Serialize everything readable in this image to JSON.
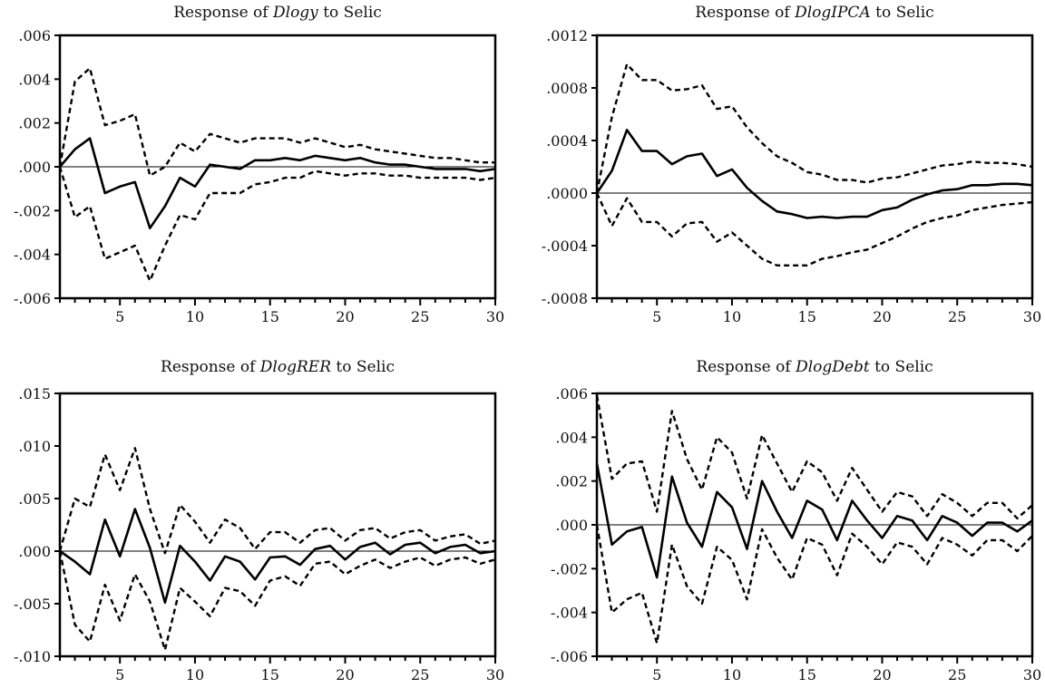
{
  "chart_data": [
    {
      "type": "line",
      "title_prefix": "Response of ",
      "title_variable": "Dlogy",
      "title_suffix": " to Selic",
      "ylim": [
        -0.006,
        0.006
      ],
      "yticks": [
        0.006,
        0.004,
        0.002,
        0.0,
        -0.002,
        -0.004,
        -0.006
      ],
      "ytick_labels": [
        ".006",
        ".004",
        ".002",
        ".000",
        "-.002",
        "-.004",
        "-.006"
      ],
      "xlim": [
        1,
        30
      ],
      "xtick_labels": [
        "5",
        "10",
        "15",
        "20",
        "25",
        "30"
      ],
      "series": [
        {
          "name": "response",
          "style": "solid",
          "values": [
            0,
            0.0008,
            0.0013,
            -0.0012,
            -0.0009,
            -0.0007,
            -0.0028,
            -0.0018,
            -0.0005,
            -0.0009,
            0.0001,
            0.0,
            -0.0001,
            0.0003,
            0.0003,
            0.0004,
            0.0003,
            0.0005,
            0.0004,
            0.0003,
            0.0004,
            0.0002,
            0.0001,
            0.0001,
            0.0,
            -0.0001,
            -0.0001,
            -0.0001,
            -0.0002,
            -0.0001
          ]
        },
        {
          "name": "upper",
          "style": "dashed",
          "values": [
            0,
            0.0039,
            0.0045,
            0.0019,
            0.0021,
            0.0024,
            -0.0004,
            0.0,
            0.0011,
            0.0007,
            0.0015,
            0.0013,
            0.0011,
            0.0013,
            0.0013,
            0.0013,
            0.0011,
            0.0013,
            0.0011,
            0.0009,
            0.001,
            0.0008,
            0.0007,
            0.0006,
            0.0005,
            0.0004,
            0.0004,
            0.0003,
            0.0002,
            0.0002
          ]
        },
        {
          "name": "lower",
          "style": "dashed",
          "values": [
            0,
            -0.0023,
            -0.0018,
            -0.0042,
            -0.0039,
            -0.0036,
            -0.0052,
            -0.0036,
            -0.0022,
            -0.0024,
            -0.0012,
            -0.0012,
            -0.0012,
            -0.0008,
            -0.0007,
            -0.0005,
            -0.0005,
            -0.0002,
            -0.0003,
            -0.0004,
            -0.0003,
            -0.0003,
            -0.0004,
            -0.0004,
            -0.0005,
            -0.0005,
            -0.0005,
            -0.0005,
            -0.0006,
            -0.0005
          ]
        }
      ]
    },
    {
      "type": "line",
      "title_prefix": "Response of ",
      "title_variable": "DlogIPCA",
      "title_suffix": " to Selic",
      "ylim": [
        -0.0008,
        0.0012
      ],
      "yticks": [
        0.0012,
        0.0008,
        0.0004,
        0.0,
        -0.0004,
        -0.0008
      ],
      "ytick_labels": [
        ".0012",
        ".0008",
        ".0004",
        ".0000",
        "-.0004",
        "-.0008"
      ],
      "xlim": [
        1,
        30
      ],
      "xtick_labels": [
        "5",
        "10",
        "15",
        "20",
        "25",
        "30"
      ],
      "series": [
        {
          "name": "response",
          "style": "solid",
          "values": [
            0,
            0.00017,
            0.00048,
            0.00032,
            0.00032,
            0.00022,
            0.00028,
            0.0003,
            0.00013,
            0.00018,
            4e-05,
            -6e-05,
            -0.00014,
            -0.00016,
            -0.00019,
            -0.00018,
            -0.00019,
            -0.00018,
            -0.00018,
            -0.00013,
            -0.00011,
            -5e-05,
            -1e-05,
            2e-05,
            3e-05,
            6e-05,
            6e-05,
            7e-05,
            7e-05,
            6e-05
          ]
        },
        {
          "name": "upper",
          "style": "dashed",
          "values": [
            0,
            0.00058,
            0.00098,
            0.00086,
            0.00086,
            0.00078,
            0.00079,
            0.00082,
            0.00064,
            0.00066,
            0.0005,
            0.00038,
            0.00028,
            0.00023,
            0.00016,
            0.00014,
            0.0001,
            0.0001,
            8e-05,
            0.00011,
            0.00012,
            0.00015,
            0.00018,
            0.00021,
            0.00022,
            0.00024,
            0.00023,
            0.00023,
            0.00022,
            0.0002
          ]
        },
        {
          "name": "lower",
          "style": "dashed",
          "values": [
            0,
            -0.00025,
            -4e-05,
            -0.00022,
            -0.00022,
            -0.00033,
            -0.00023,
            -0.00022,
            -0.00037,
            -0.0003,
            -0.0004,
            -0.0005,
            -0.00055,
            -0.00055,
            -0.00055,
            -0.0005,
            -0.00048,
            -0.00045,
            -0.00043,
            -0.00038,
            -0.00033,
            -0.00027,
            -0.00022,
            -0.00019,
            -0.00017,
            -0.00013,
            -0.00011,
            -9e-05,
            -8e-05,
            -7e-05
          ]
        }
      ]
    },
    {
      "type": "line",
      "title_prefix": "Response of ",
      "title_variable": "DlogRER",
      "title_suffix": " to Selic",
      "ylim": [
        -0.01,
        0.015
      ],
      "yticks": [
        0.015,
        0.01,
        0.005,
        0.0,
        -0.005,
        -0.01
      ],
      "ytick_labels": [
        ".015",
        ".010",
        ".005",
        ".000",
        "-.005",
        "-.010"
      ],
      "xlim": [
        1,
        30
      ],
      "xtick_labels": [
        "5",
        "10",
        "15",
        "20",
        "25",
        "30"
      ],
      "series": [
        {
          "name": "response",
          "style": "solid",
          "values": [
            0,
            -0.001,
            -0.0022,
            0.003,
            -0.0005,
            0.004,
            0.0003,
            -0.0049,
            0.0005,
            -0.001,
            -0.0028,
            -0.0005,
            -0.001,
            -0.0027,
            -0.0006,
            -0.0005,
            -0.0013,
            0.0002,
            0.0005,
            -0.0008,
            0.0004,
            0.0008,
            -0.0003,
            0.0006,
            0.0008,
            -0.0002,
            0.0004,
            0.0006,
            -0.0002,
            0.0
          ]
        },
        {
          "name": "upper",
          "style": "dashed",
          "values": [
            0,
            0.005,
            0.0042,
            0.0092,
            0.0058,
            0.0098,
            0.004,
            -0.0002,
            0.0044,
            0.0028,
            0.0008,
            0.003,
            0.0022,
            0.0002,
            0.0018,
            0.0018,
            0.0008,
            0.002,
            0.0022,
            0.001,
            0.002,
            0.0022,
            0.0012,
            0.0018,
            0.002,
            0.001,
            0.0014,
            0.0016,
            0.0007,
            0.001
          ]
        },
        {
          "name": "lower",
          "style": "dashed",
          "values": [
            0,
            -0.007,
            -0.0086,
            -0.0032,
            -0.0066,
            -0.0022,
            -0.0048,
            -0.0094,
            -0.0035,
            -0.0048,
            -0.0062,
            -0.0035,
            -0.0038,
            -0.0052,
            -0.0028,
            -0.0024,
            -0.0033,
            -0.0012,
            -0.001,
            -0.0022,
            -0.0014,
            -0.0008,
            -0.0016,
            -0.001,
            -0.0006,
            -0.0014,
            -0.0008,
            -0.0006,
            -0.0012,
            -0.0008
          ]
        }
      ]
    },
    {
      "type": "line",
      "title_prefix": "Response of ",
      "title_variable": "DlogDebt",
      "title_suffix": " to Selic",
      "ylim": [
        -0.006,
        0.006
      ],
      "yticks": [
        0.006,
        0.004,
        0.002,
        0.0,
        -0.002,
        -0.004,
        -0.006
      ],
      "ytick_labels": [
        ".006",
        ".004",
        ".002",
        ".000",
        "-.002",
        "-.004",
        "-.006"
      ],
      "xlim": [
        1,
        30
      ],
      "xtick_labels": [
        "5",
        "10",
        "15",
        "20",
        "25",
        "30"
      ],
      "series": [
        {
          "name": "response",
          "style": "solid",
          "values": [
            0.0028,
            -0.0009,
            -0.0003,
            -0.0001,
            -0.0024,
            0.0022,
            0.0001,
            -0.001,
            0.0015,
            0.0008,
            -0.0011,
            0.002,
            0.0006,
            -0.0006,
            0.0011,
            0.0007,
            -0.0007,
            0.0011,
            0.0002,
            -0.0006,
            0.0004,
            0.0002,
            -0.0007,
            0.0004,
            0.0001,
            -0.0005,
            0.0001,
            0.0001,
            -0.0003,
            0.0002
          ]
        },
        {
          "name": "upper",
          "style": "dashed",
          "values": [
            0.0059,
            0.0021,
            0.0028,
            0.0029,
            0.0006,
            0.0052,
            0.003,
            0.0016,
            0.004,
            0.0033,
            0.0012,
            0.0041,
            0.0028,
            0.0015,
            0.0029,
            0.0024,
            0.0011,
            0.0026,
            0.0016,
            0.0006,
            0.0015,
            0.0013,
            0.0004,
            0.0014,
            0.001,
            0.0004,
            0.001,
            0.001,
            0.0003,
            0.0009
          ]
        },
        {
          "name": "lower",
          "style": "dashed",
          "values": [
            0,
            -0.004,
            -0.0034,
            -0.0031,
            -0.0054,
            -0.0009,
            -0.0028,
            -0.0036,
            -0.001,
            -0.0016,
            -0.0034,
            -0.0002,
            -0.0015,
            -0.0025,
            -0.0006,
            -0.0009,
            -0.0023,
            -0.0004,
            -0.001,
            -0.0018,
            -0.0008,
            -0.001,
            -0.0018,
            -0.0006,
            -0.0009,
            -0.0014,
            -0.0007,
            -0.0007,
            -0.0012,
            -0.0005
          ]
        }
      ]
    }
  ]
}
